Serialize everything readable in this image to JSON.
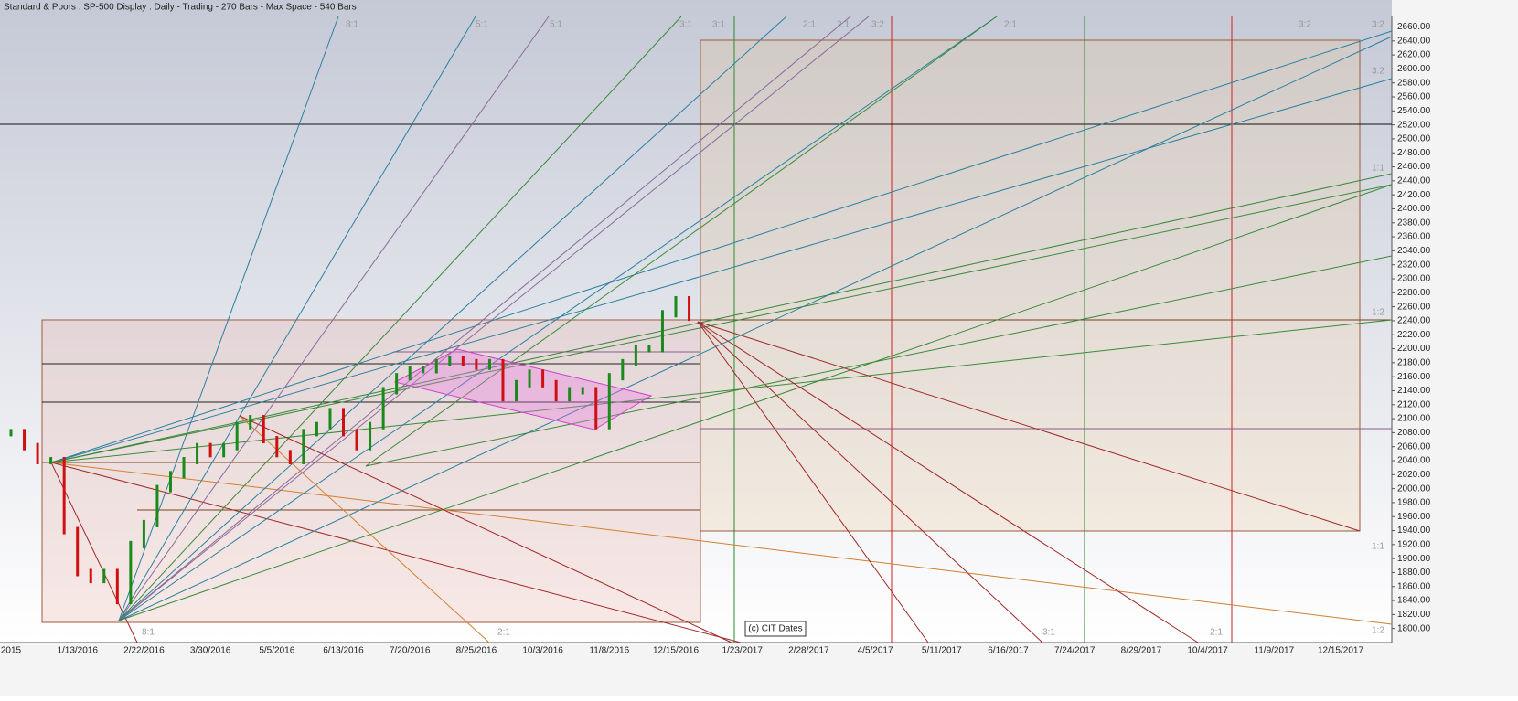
{
  "chart_data": {
    "type": "price-bars",
    "title": "Standard & Poors : SP-500 Display :  Daily   - Trading - 270 Bars -  Max Space - 540 Bars",
    "watermark": "(c) CIT Dates",
    "categories": [
      "2015",
      null,
      null,
      null,
      null,
      "1/13/2016",
      null,
      null,
      null,
      null,
      "2/22/2016",
      null,
      null,
      null,
      null,
      "3/30/2016",
      null,
      null,
      null,
      null,
      "5/5/2016",
      null,
      null,
      null,
      null,
      "6/13/2016",
      null,
      null,
      null,
      null,
      "7/20/2016",
      null,
      null,
      null,
      null,
      "8/25/2016",
      null,
      null,
      null,
      null,
      "10/3/2016",
      null,
      null,
      null,
      null,
      "11/8/2016",
      null,
      null,
      null,
      null,
      "12/15/2016",
      null,
      null,
      null,
      null,
      "1/23/2017",
      null,
      null,
      null,
      null,
      "2/28/2017",
      null,
      null,
      null,
      null,
      "4/5/2017",
      null,
      null,
      null,
      null,
      "5/11/2017",
      null,
      null,
      null,
      null,
      "6/16/2017",
      null,
      null,
      null,
      null,
      "7/24/2017",
      null,
      null,
      null,
      null,
      "8/29/2017",
      null,
      null,
      null,
      null,
      "10/4/2017",
      null,
      null,
      null,
      null,
      "11/9/2017",
      null,
      null,
      null,
      null,
      "12/15/2017"
    ],
    "values": [
      2080,
      2060,
      2040,
      2040,
      1940,
      1880,
      1870,
      1880,
      1840,
      1920,
      1950,
      2000,
      2020,
      2040,
      2060,
      2050,
      2060,
      2090,
      2100,
      2070,
      2050,
      2040,
      2080,
      2090,
      2110,
      2080,
      2060,
      2090,
      2140,
      2160,
      2170,
      2170,
      2180,
      2185,
      2180,
      2175,
      2180,
      2130,
      2150,
      2165,
      2150,
      2130,
      2140,
      2140,
      2090,
      2160,
      2180,
      2200,
      2200,
      2250,
      2270,
      2245,
      null,
      null,
      null,
      null,
      null,
      null,
      null,
      null,
      null,
      null,
      null,
      null,
      null,
      null,
      null,
      null,
      null,
      null,
      null,
      null,
      null,
      null,
      null,
      null,
      null,
      null,
      null,
      null,
      null,
      null,
      null,
      null,
      null,
      null,
      null,
      null,
      null,
      null,
      null,
      null,
      null,
      null,
      null,
      null,
      null,
      null,
      null,
      null,
      null
    ],
    "up_color": "#1a8a1a",
    "down_color": "#d01010",
    "ylim": [
      1780,
      2675
    ],
    "yticks": [
      {
        "value": 1800,
        "label": "1800.00"
      },
      {
        "value": 1820,
        "label": "1820.00"
      },
      {
        "value": 1840,
        "label": "1840.00"
      },
      {
        "value": 1860,
        "label": "1860.00"
      },
      {
        "value": 1880,
        "label": "1880.00"
      },
      {
        "value": 1900,
        "label": "1900.00"
      },
      {
        "value": 1920,
        "label": "1920.00"
      },
      {
        "value": 1940,
        "label": "1940.00"
      },
      {
        "value": 1960,
        "label": "1960.00"
      },
      {
        "value": 1980,
        "label": "1980.00"
      },
      {
        "value": 2000,
        "label": "2000.00"
      },
      {
        "value": 2020,
        "label": "2020.00"
      },
      {
        "value": 2040,
        "label": "2040.00"
      },
      {
        "value": 2060,
        "label": "2060.00"
      },
      {
        "value": 2080,
        "label": "2080.00"
      },
      {
        "value": 2100,
        "label": "2100.00"
      },
      {
        "value": 2120,
        "label": "2120.00"
      },
      {
        "value": 2140,
        "label": "2140.00"
      },
      {
        "value": 2160,
        "label": "2160.00"
      },
      {
        "value": 2180,
        "label": "2180.00"
      },
      {
        "value": 2200,
        "label": "2200.00"
      },
      {
        "value": 2220,
        "label": "2220.00"
      },
      {
        "value": 2240,
        "label": "2240.00"
      },
      {
        "value": 2260,
        "label": "2260.00"
      },
      {
        "value": 2280,
        "label": "2280.00"
      },
      {
        "value": 2300,
        "label": "2300.00"
      },
      {
        "value": 2320,
        "label": "2320.00"
      },
      {
        "value": 2340,
        "label": "2340.00"
      },
      {
        "value": 2360,
        "label": "2360.00"
      },
      {
        "value": 2380,
        "label": "2380.00"
      },
      {
        "value": 2400,
        "label": "2400.00"
      },
      {
        "value": 2420,
        "label": "2420.00"
      },
      {
        "value": 2440,
        "label": "2440.00"
      },
      {
        "value": 2460,
        "label": "2460.00"
      },
      {
        "value": 2480,
        "label": "2480.00"
      },
      {
        "value": 2500,
        "label": "2500.00"
      },
      {
        "value": 2520,
        "label": "2520.00"
      },
      {
        "value": 2540,
        "label": "2540.00"
      },
      {
        "value": 2560,
        "label": "2560.00"
      },
      {
        "value": 2580,
        "label": "2580.00"
      },
      {
        "value": 2600,
        "label": "2600.00"
      },
      {
        "value": 2620,
        "label": "2620.00"
      },
      {
        "value": 2640,
        "label": "2640.00"
      },
      {
        "value": 2660,
        "label": "2660.00"
      }
    ],
    "annotations": [
      "8:1",
      "5:1",
      "5:1",
      "3:1",
      "3:1",
      "2:1",
      "2:1",
      "3:2",
      "2:1",
      "3:2",
      "3:2",
      "3:2",
      "1:1",
      "1:2",
      "1:1",
      "1:2",
      "8:1",
      "2:1",
      "3:1",
      "2:1"
    ]
  }
}
